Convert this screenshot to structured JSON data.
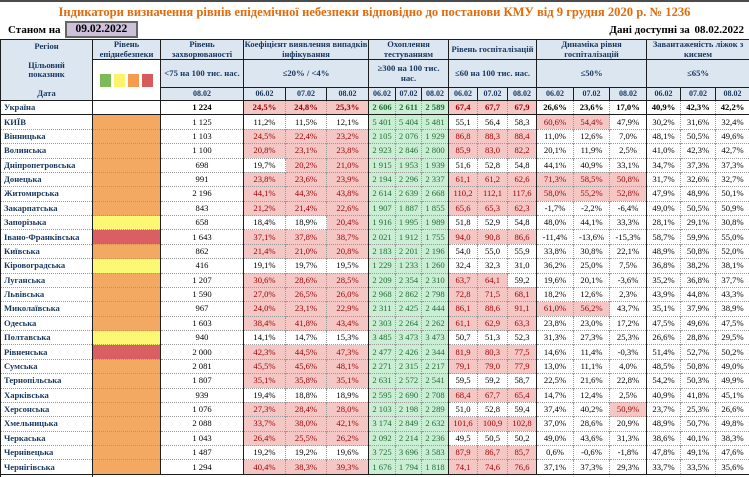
{
  "title": "Індикатори визначення рівнів епідемічної небезпеки відповідно до постанови КМУ від 9 грудня 2020 р. № 1236",
  "as_of_label": "Станом на",
  "as_of_date": "09.02.2022",
  "available_label": "Дані доступні за",
  "available_date": "08.02.2022",
  "corner": {
    "region": "Регіон",
    "target": "Цільовий показник",
    "date": "Дата"
  },
  "groups": {
    "level": {
      "title": "Рівень епіднебезпеки"
    },
    "morbidity": {
      "title": "Рівень захворюваності",
      "threshold": "<75 на 100 тис. нас.",
      "date": "08.02"
    },
    "detection": {
      "title": "Коефіцієнт виявлення випадків інфікування",
      "threshold": "≤20% / <4%",
      "dates": [
        "06.02",
        "07.02",
        "08.02"
      ]
    },
    "testing": {
      "title": "Охоплення тестуванням",
      "threshold": "≥300 на 100 тис. нас.",
      "dates": [
        "06.02",
        "07.02",
        "08.02"
      ]
    },
    "hospitalization": {
      "title": "Рівень госпіталізацій",
      "threshold": "≤60 на 100 тис. нас.",
      "dates": [
        "06.02",
        "07.02",
        "08.02"
      ]
    },
    "dynamics": {
      "title": "Динаміка рівня госпіталізацій",
      "threshold": "≤50%",
      "dates": [
        "06.02",
        "07.02",
        "08.02"
      ]
    },
    "oxygen": {
      "title": "Завантаженість ліжок з киснем",
      "threshold": "≤65%",
      "dates": [
        "06.02",
        "07.02",
        "08.02"
      ]
    }
  },
  "legend": {
    "colors": [
      "#7CBB57",
      "#FDF26B",
      "#F69A4E",
      "#D75A5E"
    ]
  },
  "level_colors": {
    "orange": "#F4A963",
    "yellow": "#FBF874",
    "red": "#D95F62",
    "none": "#FFFFFF"
  },
  "thresholds": {
    "detection": 20,
    "hospitalization": 60,
    "dynamics": 50,
    "oxygen": 65
  },
  "rows": [
    {
      "region": "Україна",
      "level": "none",
      "total": true,
      "morbidity": "1 224",
      "detection": [
        "24,5%",
        "24,8%",
        "25,3%"
      ],
      "testing": [
        "2 606",
        "2 611",
        "2 589"
      ],
      "hospitalization": [
        "67,4",
        "67,7",
        "67,9"
      ],
      "dynamics": [
        "26,6%",
        "23,6%",
        "17,0%"
      ],
      "oxygen": [
        "40,9%",
        "42,3%",
        "42,2%"
      ]
    },
    {
      "region": "КИЇВ",
      "level": "orange",
      "total": false,
      "morbidity": "1 125",
      "detection": [
        "11,2%",
        "11,5%",
        "12,1%"
      ],
      "testing": [
        "5 401",
        "5 404",
        "5 481"
      ],
      "hospitalization": [
        "55,1",
        "56,4",
        "58,3"
      ],
      "dynamics": [
        "60,6%",
        "54,4%",
        "47,9%"
      ],
      "oxygen": [
        "30,2%",
        "31,6%",
        "32,4%"
      ]
    },
    {
      "region": "Вінницька",
      "level": "orange",
      "total": false,
      "morbidity": "1 103",
      "detection": [
        "24,5%",
        "22,4%",
        "23,2%"
      ],
      "testing": [
        "2 105",
        "2 076",
        "1 929"
      ],
      "hospitalization": [
        "86,8",
        "88,3",
        "88,4"
      ],
      "dynamics": [
        "11,0%",
        "12,6%",
        "7,0%"
      ],
      "oxygen": [
        "48,1%",
        "50,5%",
        "49,6%"
      ]
    },
    {
      "region": "Волинська",
      "level": "orange",
      "total": false,
      "morbidity": "1 100",
      "detection": [
        "20,8%",
        "23,1%",
        "23,8%"
      ],
      "testing": [
        "2 923",
        "2 846",
        "2 800"
      ],
      "hospitalization": [
        "85,9",
        "83,0",
        "82,2"
      ],
      "dynamics": [
        "20,1%",
        "11,9%",
        "2,5%"
      ],
      "oxygen": [
        "41,0%",
        "42,3%",
        "42,7%"
      ]
    },
    {
      "region": "Дніпропетровська",
      "level": "orange",
      "total": false,
      "morbidity": "698",
      "detection": [
        "19,7%",
        "20,2%",
        "21,0%"
      ],
      "testing": [
        "1 915",
        "1 953",
        "1 939"
      ],
      "hospitalization": [
        "51,6",
        "52,8",
        "54,8"
      ],
      "dynamics": [
        "44,1%",
        "40,9%",
        "33,1%"
      ],
      "oxygen": [
        "34,7%",
        "37,3%",
        "37,3%"
      ]
    },
    {
      "region": "Донецька",
      "level": "orange",
      "total": false,
      "morbidity": "991",
      "detection": [
        "23,8%",
        "23,6%",
        "23,9%"
      ],
      "testing": [
        "2 194",
        "2 296",
        "2 337"
      ],
      "hospitalization": [
        "61,1",
        "61,2",
        "62,6"
      ],
      "dynamics": [
        "71,3%",
        "58,5%",
        "50,8%"
      ],
      "oxygen": [
        "31,7%",
        "32,6%",
        "32,7%"
      ]
    },
    {
      "region": "Житомирська",
      "level": "orange",
      "total": false,
      "morbidity": "2 196",
      "detection": [
        "44,1%",
        "44,3%",
        "43,8%"
      ],
      "testing": [
        "2 614",
        "2 639",
        "2 668"
      ],
      "hospitalization": [
        "110,2",
        "112,1",
        "117,6"
      ],
      "dynamics": [
        "58,0%",
        "55,2%",
        "52,8%"
      ],
      "oxygen": [
        "47,9%",
        "48,9%",
        "50,1%"
      ]
    },
    {
      "region": "Закарпатська",
      "level": "orange",
      "total": false,
      "morbidity": "843",
      "detection": [
        "21,2%",
        "21,4%",
        "22,6%"
      ],
      "testing": [
        "1 907",
        "1 887",
        "1 855"
      ],
      "hospitalization": [
        "65,6",
        "65,3",
        "62,3"
      ],
      "dynamics": [
        "-1,7%",
        "-2,2%",
        "-6,4%"
      ],
      "oxygen": [
        "49,0%",
        "50,5%",
        "50,9%"
      ]
    },
    {
      "region": "Запорізька",
      "level": "yellow",
      "total": false,
      "morbidity": "658",
      "detection": [
        "18,4%",
        "18,9%",
        "20,4%"
      ],
      "testing": [
        "1 916",
        "1 995",
        "1 989"
      ],
      "hospitalization": [
        "51,8",
        "52,9",
        "54,8"
      ],
      "dynamics": [
        "48,0%",
        "44,1%",
        "33,3%"
      ],
      "oxygen": [
        "28,1%",
        "29,1%",
        "30,8%"
      ]
    },
    {
      "region": "Івано-Франківська",
      "level": "red",
      "total": false,
      "morbidity": "1 643",
      "detection": [
        "37,1%",
        "37,8%",
        "38,7%"
      ],
      "testing": [
        "2 021",
        "1 912",
        "1 755"
      ],
      "hospitalization": [
        "94,0",
        "90,8",
        "86,6"
      ],
      "dynamics": [
        "-11,4%",
        "-13,6%",
        "-15,3%"
      ],
      "oxygen": [
        "58,7%",
        "59,9%",
        "55,0%"
      ]
    },
    {
      "region": "Київська",
      "level": "orange",
      "total": false,
      "morbidity": "862",
      "detection": [
        "21,4%",
        "21,0%",
        "20,8%"
      ],
      "testing": [
        "2 183",
        "2 201",
        "2 196"
      ],
      "hospitalization": [
        "54,0",
        "55,0",
        "55,9"
      ],
      "dynamics": [
        "33,8%",
        "30,8%",
        "22,1%"
      ],
      "oxygen": [
        "48,9%",
        "50,8%",
        "52,0%"
      ]
    },
    {
      "region": "Кіровоградська",
      "level": "yellow",
      "total": false,
      "morbidity": "416",
      "detection": [
        "19,1%",
        "19,7%",
        "19,5%"
      ],
      "testing": [
        "1 229",
        "1 233",
        "1 260"
      ],
      "hospitalization": [
        "32,4",
        "32,3",
        "31,0"
      ],
      "dynamics": [
        "36,2%",
        "25,0%",
        "7,5%"
      ],
      "oxygen": [
        "36,8%",
        "38,2%",
        "38,1%"
      ]
    },
    {
      "region": "Луганська",
      "level": "orange",
      "total": false,
      "morbidity": "1 207",
      "detection": [
        "30,6%",
        "28,6%",
        "28,5%"
      ],
      "testing": [
        "2 209",
        "2 354",
        "2 310"
      ],
      "hospitalization": [
        "63,7",
        "64,1",
        "59,2"
      ],
      "dynamics": [
        "19,6%",
        "20,1%",
        "-3,6%"
      ],
      "oxygen": [
        "35,2%",
        "36,8%",
        "37,7%"
      ]
    },
    {
      "region": "Львівська",
      "level": "orange",
      "total": false,
      "morbidity": "1 590",
      "detection": [
        "27,0%",
        "26,5%",
        "26,0%"
      ],
      "testing": [
        "2 968",
        "2 862",
        "2 798"
      ],
      "hospitalization": [
        "72,8",
        "71,5",
        "68,1"
      ],
      "dynamics": [
        "18,2%",
        "12,6%",
        "2,3%"
      ],
      "oxygen": [
        "43,9%",
        "44,8%",
        "43,3%"
      ]
    },
    {
      "region": "Миколаївська",
      "level": "orange",
      "total": false,
      "morbidity": "967",
      "detection": [
        "24,0%",
        "23,1%",
        "22,9%"
      ],
      "testing": [
        "2 311",
        "2 425",
        "2 444"
      ],
      "hospitalization": [
        "86,1",
        "88,6",
        "91,1"
      ],
      "dynamics": [
        "61,0%",
        "56,2%",
        "43,7%"
      ],
      "oxygen": [
        "35,1%",
        "37,9%",
        "38,9%"
      ]
    },
    {
      "region": "Одеська",
      "level": "orange",
      "total": false,
      "morbidity": "1 603",
      "detection": [
        "38,4%",
        "41,8%",
        "43,4%"
      ],
      "testing": [
        "2 303",
        "2 264",
        "2 262"
      ],
      "hospitalization": [
        "61,1",
        "62,9",
        "63,3"
      ],
      "dynamics": [
        "23,8%",
        "23,0%",
        "17,2%"
      ],
      "oxygen": [
        "47,5%",
        "49,6%",
        "47,5%"
      ]
    },
    {
      "region": "Полтавська",
      "level": "yellow",
      "total": false,
      "morbidity": "940",
      "detection": [
        "14,1%",
        "14,7%",
        "15,3%"
      ],
      "testing": [
        "3 485",
        "3 473",
        "3 473"
      ],
      "hospitalization": [
        "50,7",
        "51,3",
        "52,3"
      ],
      "dynamics": [
        "31,3%",
        "27,3%",
        "25,3%"
      ],
      "oxygen": [
        "26,6%",
        "28,8%",
        "29,5%"
      ]
    },
    {
      "region": "Рівненська",
      "level": "red",
      "total": false,
      "morbidity": "2 000",
      "detection": [
        "42,3%",
        "44,5%",
        "47,3%"
      ],
      "testing": [
        "2 477",
        "2 426",
        "2 344"
      ],
      "hospitalization": [
        "81,9",
        "80,3",
        "77,5"
      ],
      "dynamics": [
        "14,6%",
        "11,4%",
        "-0,3%"
      ],
      "oxygen": [
        "51,4%",
        "52,7%",
        "50,2%"
      ]
    },
    {
      "region": "Сумська",
      "level": "orange",
      "total": false,
      "morbidity": "2 081",
      "detection": [
        "45,5%",
        "45,6%",
        "48,1%"
      ],
      "testing": [
        "2 271",
        "2 315",
        "2 217"
      ],
      "hospitalization": [
        "79,1",
        "79,0",
        "77,9"
      ],
      "dynamics": [
        "13,0%",
        "11,1%",
        "4,0%"
      ],
      "oxygen": [
        "48,5%",
        "50,8%",
        "49,0%"
      ]
    },
    {
      "region": "Тернопільська",
      "level": "orange",
      "total": false,
      "morbidity": "1 807",
      "detection": [
        "35,1%",
        "35,8%",
        "35,1%"
      ],
      "testing": [
        "2 631",
        "2 572",
        "2 541"
      ],
      "hospitalization": [
        "59,5",
        "59,2",
        "58,7"
      ],
      "dynamics": [
        "22,5%",
        "21,6%",
        "22,8%"
      ],
      "oxygen": [
        "54,2%",
        "50,3%",
        "49,9%"
      ]
    },
    {
      "region": "Харківська",
      "level": "orange",
      "total": false,
      "morbidity": "939",
      "detection": [
        "19,4%",
        "18,8%",
        "18,9%"
      ],
      "testing": [
        "2 595",
        "2 690",
        "2 708"
      ],
      "hospitalization": [
        "68,4",
        "67,7",
        "65,4"
      ],
      "dynamics": [
        "14,7%",
        "12,4%",
        "2,5%"
      ],
      "oxygen": [
        "40,9%",
        "41,8%",
        "45,1%"
      ]
    },
    {
      "region": "Херсонська",
      "level": "orange",
      "total": false,
      "morbidity": "1 076",
      "detection": [
        "27,3%",
        "28,4%",
        "28,0%"
      ],
      "testing": [
        "2 103",
        "2 198",
        "2 289"
      ],
      "hospitalization": [
        "51,0",
        "52,8",
        "59,4"
      ],
      "dynamics": [
        "37,4%",
        "40,2%",
        "50,9%"
      ],
      "oxygen": [
        "23,7%",
        "25,3%",
        "26,6%"
      ]
    },
    {
      "region": "Хмельницька",
      "level": "orange",
      "total": false,
      "morbidity": "2 088",
      "detection": [
        "33,7%",
        "38,0%",
        "42,1%"
      ],
      "testing": [
        "3 174",
        "2 849",
        "2 632"
      ],
      "hospitalization": [
        "101,6",
        "100,9",
        "102,8"
      ],
      "dynamics": [
        "37,0%",
        "28,6%",
        "20,9%"
      ],
      "oxygen": [
        "48,9%",
        "50,7%",
        "49,8%"
      ]
    },
    {
      "region": "Черкаська",
      "level": "orange",
      "total": false,
      "morbidity": "1 043",
      "detection": [
        "26,4%",
        "25,5%",
        "26,2%"
      ],
      "testing": [
        "2 092",
        "2 214",
        "2 236"
      ],
      "hospitalization": [
        "49,5",
        "50,5",
        "50,2"
      ],
      "dynamics": [
        "49,0%",
        "43,6%",
        "31,3%"
      ],
      "oxygen": [
        "38,6%",
        "40,1%",
        "38,3%"
      ]
    },
    {
      "region": "Чернівецька",
      "level": "orange",
      "total": false,
      "morbidity": "1 487",
      "detection": [
        "19,2%",
        "19,2%",
        "19,6%"
      ],
      "testing": [
        "3 725",
        "3 696",
        "3 583"
      ],
      "hospitalization": [
        "87,9",
        "86,7",
        "85,7"
      ],
      "dynamics": [
        "0,6%",
        "-0,6%",
        "-1,8%"
      ],
      "oxygen": [
        "47,8%",
        "49,1%",
        "47,6%"
      ]
    },
    {
      "region": "Чернігівська",
      "level": "orange",
      "total": false,
      "morbidity": "1 294",
      "detection": [
        "40,4%",
        "38,3%",
        "39,3%"
      ],
      "testing": [
        "1 676",
        "1 794",
        "1 818"
      ],
      "hospitalization": [
        "74,1",
        "74,6",
        "76,6"
      ],
      "dynamics": [
        "37,1%",
        "37,3%",
        "29,3%"
      ],
      "oxygen": [
        "33,7%",
        "33,5%",
        "35,6%"
      ]
    }
  ]
}
